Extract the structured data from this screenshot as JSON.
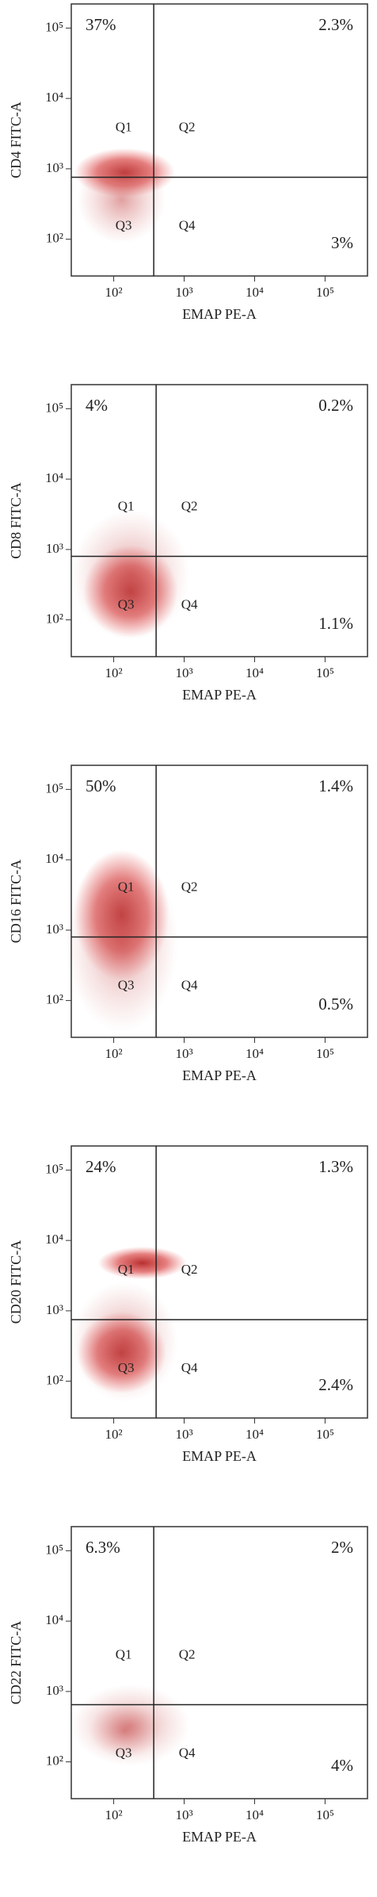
{
  "chart_data": [
    {
      "type": "scatter",
      "ylabel": "CD4 FITC-A",
      "xlabel": "EMAP PE-A",
      "log_x": true,
      "log_y": true,
      "xlim": [
        25,
        400000
      ],
      "ylim": [
        30,
        220000
      ],
      "xticks": [
        {
          "value": 100,
          "label": "10²"
        },
        {
          "value": 1000,
          "label": "10³"
        },
        {
          "value": 10000,
          "label": "10⁴"
        },
        {
          "value": 100000,
          "label": "10⁵"
        }
      ],
      "yticks": [
        {
          "value": 100,
          "label": "10²"
        },
        {
          "value": 1000,
          "label": "10³"
        },
        {
          "value": 10000,
          "label": "10⁴"
        },
        {
          "value": 100000,
          "label": "10⁵"
        }
      ],
      "gate": {
        "x": 370,
        "y": 760
      },
      "quadrants": [
        "Q1",
        "Q2",
        "Q3",
        "Q4"
      ],
      "values": [
        37,
        2.3,
        null,
        3
      ],
      "value_labels": [
        "37%",
        "2.3%",
        null,
        "3%"
      ]
    },
    {
      "type": "scatter",
      "ylabel": "CD8 FITC-A",
      "xlabel": "EMAP PE-A",
      "log_x": true,
      "log_y": true,
      "xlim": [
        25,
        400000
      ],
      "ylim": [
        30,
        220000
      ],
      "xticks": [
        {
          "value": 100,
          "label": "10²"
        },
        {
          "value": 1000,
          "label": "10³"
        },
        {
          "value": 10000,
          "label": "10⁴"
        },
        {
          "value": 100000,
          "label": "10⁵"
        }
      ],
      "yticks": [
        {
          "value": 100,
          "label": "10²"
        },
        {
          "value": 1000,
          "label": "10³"
        },
        {
          "value": 10000,
          "label": "10⁴"
        },
        {
          "value": 100000,
          "label": "10⁵"
        }
      ],
      "gate": {
        "x": 400,
        "y": 800
      },
      "quadrants": [
        "Q1",
        "Q2",
        "Q3",
        "Q4"
      ],
      "values": [
        4,
        0.2,
        null,
        1.1
      ],
      "value_labels": [
        "4%",
        "0.2%",
        null,
        "1.1%"
      ]
    },
    {
      "type": "scatter",
      "ylabel": "CD16 FITC-A",
      "xlabel": "EMAP PE-A",
      "log_x": true,
      "log_y": true,
      "xlim": [
        25,
        400000
      ],
      "ylim": [
        30,
        220000
      ],
      "xticks": [
        {
          "value": 100,
          "label": "10²"
        },
        {
          "value": 1000,
          "label": "10³"
        },
        {
          "value": 10000,
          "label": "10⁴"
        },
        {
          "value": 100000,
          "label": "10⁵"
        }
      ],
      "yticks": [
        {
          "value": 100,
          "label": "10²"
        },
        {
          "value": 1000,
          "label": "10³"
        },
        {
          "value": 10000,
          "label": "10⁴"
        },
        {
          "value": 100000,
          "label": "10⁵"
        }
      ],
      "gate": {
        "x": 400,
        "y": 800
      },
      "quadrants": [
        "Q1",
        "Q2",
        "Q3",
        "Q4"
      ],
      "values": [
        50,
        1.4,
        null,
        0.5
      ],
      "value_labels": [
        "50%",
        "1.4%",
        null,
        "0.5%"
      ]
    },
    {
      "type": "scatter",
      "ylabel": "CD20 FITC-A",
      "xlabel": "EMAP PE-A",
      "log_x": true,
      "log_y": true,
      "xlim": [
        25,
        400000
      ],
      "ylim": [
        30,
        220000
      ],
      "xticks": [
        {
          "value": 100,
          "label": "10²"
        },
        {
          "value": 1000,
          "label": "10³"
        },
        {
          "value": 10000,
          "label": "10⁴"
        },
        {
          "value": 100000,
          "label": "10⁵"
        }
      ],
      "yticks": [
        {
          "value": 100,
          "label": "10²"
        },
        {
          "value": 1000,
          "label": "10³"
        },
        {
          "value": 10000,
          "label": "10⁴"
        },
        {
          "value": 100000,
          "label": "10⁵"
        }
      ],
      "gate": {
        "x": 400,
        "y": 750
      },
      "quadrants": [
        "Q1",
        "Q2",
        "Q3",
        "Q4"
      ],
      "values": [
        24,
        1.3,
        null,
        2.4
      ],
      "value_labels": [
        "24%",
        "1.3%",
        null,
        "2.4%"
      ]
    },
    {
      "type": "scatter",
      "ylabel": "CD22 FITC-A",
      "xlabel": "EMAP PE-A",
      "log_x": true,
      "log_y": true,
      "xlim": [
        25,
        400000
      ],
      "ylim": [
        30,
        220000
      ],
      "xticks": [
        {
          "value": 100,
          "label": "10²"
        },
        {
          "value": 1000,
          "label": "10³"
        },
        {
          "value": 10000,
          "label": "10⁴"
        },
        {
          "value": 100000,
          "label": "10⁵"
        }
      ],
      "yticks": [
        {
          "value": 100,
          "label": "10²"
        },
        {
          "value": 1000,
          "label": "10³"
        },
        {
          "value": 10000,
          "label": "10⁴"
        },
        {
          "value": 100000,
          "label": "10⁵"
        }
      ],
      "gate": {
        "x": 370,
        "y": 650
      },
      "quadrants": [
        "Q1",
        "Q2",
        "Q3",
        "Q4"
      ],
      "values": [
        6.3,
        2,
        null,
        4
      ],
      "value_labels": [
        "6.3%",
        "2%",
        null,
        "4%"
      ]
    }
  ]
}
